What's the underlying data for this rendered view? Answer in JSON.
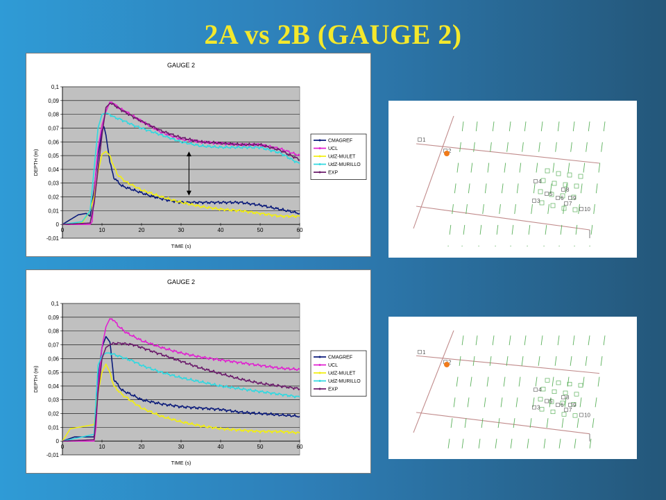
{
  "slide": {
    "title": "2A vs 2B   (GAUGE 2)"
  },
  "colors": {
    "CMAGREF": "#0a1a7a",
    "UCL": "#e020d0",
    "UdZ-MULET": "#f2ef10",
    "UdZ-MURILLO": "#30d8e0",
    "EXP": "#6a1a6a",
    "plot_bg": "#c0c0c0",
    "gauge_marker": "#f07a1a"
  },
  "chart_data": [
    {
      "type": "line",
      "title": "GAUGE 2",
      "xlabel": "TIME (s)",
      "ylabel": "DEPTH (m)",
      "xlim": [
        0,
        60
      ],
      "ylim": [
        -0.01,
        0.1
      ],
      "x_ticks": [
        "0",
        "10",
        "20",
        "30",
        "40",
        "50",
        "60"
      ],
      "y_ticks": [
        "-0,01",
        "0",
        "0,01",
        "0,02",
        "0,03",
        "0,04",
        "0,05",
        "0,06",
        "0,07",
        "0,08",
        "0,09",
        "0,1"
      ],
      "grid": true,
      "legend_position": "right",
      "annotation": {
        "type": "double-arrow",
        "x": 32,
        "y_from": 0.021,
        "y_to": 0.053
      },
      "series": [
        {
          "name": "CMAGREF",
          "x": [
            0,
            4,
            6,
            7,
            8,
            9,
            10,
            10.5,
            11,
            11.5,
            12,
            13,
            15,
            18,
            22,
            26,
            30,
            35,
            40,
            45,
            50,
            55,
            60
          ],
          "y": [
            0,
            0.007,
            0.008,
            0.006,
            0.025,
            0.05,
            0.068,
            0.071,
            0.065,
            0.055,
            0.045,
            0.034,
            0.028,
            0.025,
            0.021,
            0.018,
            0.016,
            0.016,
            0.016,
            0.016,
            0.014,
            0.011,
            0.008
          ]
        },
        {
          "name": "UCL",
          "x": [
            0,
            7,
            7.5,
            8,
            8.5,
            9,
            10,
            11,
            12,
            13,
            14,
            16,
            20,
            25,
            30,
            35,
            40,
            45,
            50,
            55,
            60
          ],
          "y": [
            0,
            0,
            0.002,
            0.02,
            0.04,
            0.055,
            0.072,
            0.082,
            0.089,
            0.088,
            0.085,
            0.082,
            0.075,
            0.067,
            0.062,
            0.06,
            0.059,
            0.058,
            0.058,
            0.055,
            0.05
          ]
        },
        {
          "name": "UdZ-MULET",
          "x": [
            0,
            5,
            7,
            8,
            9,
            10,
            11,
            12,
            13,
            14,
            16,
            18,
            20,
            25,
            30,
            35,
            40,
            45,
            50,
            55,
            60
          ],
          "y": [
            0,
            0.001,
            0.01,
            0.02,
            0.038,
            0.051,
            0.053,
            0.05,
            0.042,
            0.036,
            0.031,
            0.028,
            0.025,
            0.02,
            0.016,
            0.013,
            0.011,
            0.01,
            0.008,
            0.006,
            0.006
          ]
        },
        {
          "name": "UdZ-MURILLO",
          "x": [
            0,
            5,
            7,
            8,
            9,
            10,
            11,
            12,
            13,
            15,
            18,
            20,
            25,
            30,
            35,
            40,
            45,
            50,
            55,
            60
          ],
          "y": [
            0,
            0.002,
            0.01,
            0.04,
            0.07,
            0.08,
            0.081,
            0.08,
            0.078,
            0.076,
            0.072,
            0.07,
            0.065,
            0.06,
            0.057,
            0.056,
            0.056,
            0.056,
            0.052,
            0.044
          ]
        },
        {
          "name": "EXP",
          "x": [
            0,
            7,
            8,
            9,
            10,
            11,
            12,
            13,
            15,
            18,
            20,
            25,
            30,
            35,
            40,
            45,
            50,
            55,
            60
          ],
          "y": [
            0,
            0.001,
            0.015,
            0.04,
            0.065,
            0.085,
            0.088,
            0.087,
            0.083,
            0.078,
            0.075,
            0.068,
            0.063,
            0.06,
            0.059,
            0.058,
            0.058,
            0.054,
            0.047
          ]
        }
      ]
    },
    {
      "type": "line",
      "title": "GAUGE 2",
      "xlabel": "TIME (s)",
      "ylabel": "DEPTH (m)",
      "xlim": [
        0,
        60
      ],
      "ylim": [
        -0.01,
        0.1
      ],
      "x_ticks": [
        "0",
        "10",
        "20",
        "30",
        "40",
        "50",
        "60"
      ],
      "y_ticks": [
        "-0,01",
        "0",
        "0,01",
        "0,02",
        "0,03",
        "0,04",
        "0,05",
        "0,06",
        "0,07",
        "0,08",
        "0,09",
        "0,1"
      ],
      "grid": true,
      "legend_position": "right",
      "series": [
        {
          "name": "CMAGREF",
          "x": [
            0,
            3,
            6,
            8,
            9,
            10,
            11,
            12,
            13,
            15,
            18,
            20,
            25,
            30,
            35,
            40,
            45,
            50,
            55,
            60
          ],
          "y": [
            0,
            0.003,
            0.003,
            0.003,
            0.045,
            0.068,
            0.076,
            0.072,
            0.045,
            0.037,
            0.033,
            0.03,
            0.027,
            0.025,
            0.024,
            0.023,
            0.021,
            0.02,
            0.019,
            0.018
          ]
        },
        {
          "name": "UCL",
          "x": [
            0,
            8,
            8.5,
            9,
            10,
            11,
            12,
            13,
            14,
            16,
            20,
            25,
            30,
            35,
            40,
            45,
            50,
            55,
            60
          ],
          "y": [
            0,
            0,
            0.01,
            0.04,
            0.068,
            0.083,
            0.089,
            0.088,
            0.084,
            0.079,
            0.073,
            0.068,
            0.064,
            0.061,
            0.059,
            0.057,
            0.055,
            0.053,
            0.052
          ]
        },
        {
          "name": "UdZ-MULET",
          "x": [
            0,
            2,
            4,
            6,
            8,
            9,
            10,
            11,
            12,
            13,
            15,
            18,
            20,
            25,
            30,
            35,
            40,
            45,
            50,
            55,
            60
          ],
          "y": [
            0,
            0.009,
            0.01,
            0.011,
            0.012,
            0.035,
            0.05,
            0.056,
            0.05,
            0.04,
            0.034,
            0.028,
            0.024,
            0.018,
            0.014,
            0.011,
            0.009,
            0.008,
            0.007,
            0.007,
            0.006
          ]
        },
        {
          "name": "UdZ-MURILLO",
          "x": [
            0,
            5,
            8,
            9,
            10,
            11,
            12,
            13,
            15,
            18,
            20,
            25,
            30,
            35,
            40,
            45,
            50,
            55,
            60
          ],
          "y": [
            0,
            0.003,
            0.005,
            0.055,
            0.062,
            0.064,
            0.064,
            0.063,
            0.061,
            0.058,
            0.055,
            0.05,
            0.046,
            0.043,
            0.04,
            0.038,
            0.036,
            0.034,
            0.032
          ]
        },
        {
          "name": "EXP",
          "x": [
            0,
            8,
            9,
            10,
            11,
            12,
            13,
            15,
            18,
            20,
            25,
            30,
            35,
            40,
            45,
            50,
            55,
            60
          ],
          "y": [
            0,
            0.001,
            0.035,
            0.06,
            0.068,
            0.07,
            0.071,
            0.071,
            0.07,
            0.068,
            0.063,
            0.058,
            0.053,
            0.049,
            0.045,
            0.042,
            0.04,
            0.038
          ]
        }
      ]
    }
  ],
  "maps": [
    {
      "labels": [
        "1",
        "2",
        "3",
        "4",
        "5",
        "6",
        "7",
        "8",
        "9",
        "10"
      ],
      "gauge_marker": "2"
    },
    {
      "labels": [
        "1",
        "2",
        "3",
        "4",
        "5",
        "6",
        "7",
        "8",
        "9",
        "10"
      ],
      "gauge_marker": "2"
    }
  ]
}
